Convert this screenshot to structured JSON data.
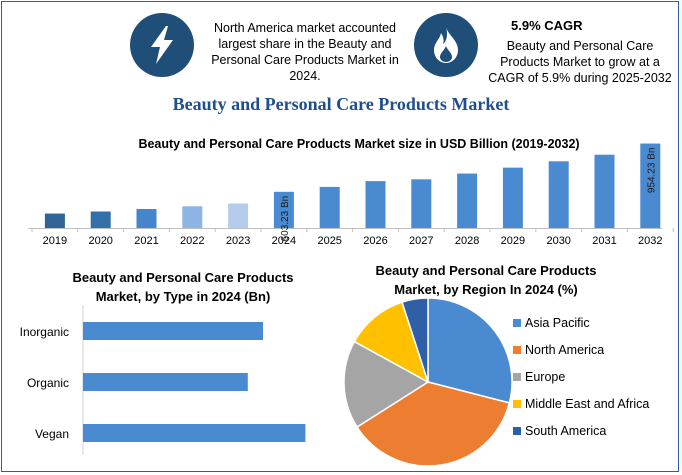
{
  "header": {
    "left_callout": "North America market accounted largest share in the Beauty and Personal Care Products Market in 2024.",
    "right_callout_title": "5.9% CAGR",
    "right_callout_text": "Beauty and Personal Care Products Market to grow at a CAGR of 5.9% during 2025-2032",
    "left_icon": "lightning-bolt-icon",
    "right_icon": "flame-icon",
    "icon_color": "#1f4e79"
  },
  "main_title": "Beauty and Personal Care Products Market",
  "chart_data": [
    {
      "type": "bar",
      "title": "Beauty and Personal Care Products Market size in USD Billion (2019-2032)",
      "categories": [
        "2019",
        "2020",
        "2021",
        "2022",
        "2023",
        "2024",
        "2025",
        "2026",
        "2027",
        "2028",
        "2029",
        "2030",
        "2031",
        "2032"
      ],
      "values": [
        445,
        460,
        478,
        498,
        518,
        603.23,
        639,
        681,
        694,
        736,
        779,
        825,
        873,
        954.23
      ],
      "data_labels": {
        "2024": "603.23 Bn",
        "2032": "954.23 Bn"
      },
      "colors": [
        "#2f6495",
        "#3170a8",
        "#4585cb",
        "#8eb4e3",
        "#b4ccec",
        "#4a8ad0",
        "#4a8ad0",
        "#4a8ad0",
        "#4a8ad0",
        "#4a8ad0",
        "#4a8ad0",
        "#4a8ad0",
        "#4a8ad0",
        "#4a8ad0"
      ],
      "ylim": [
        340,
        980
      ],
      "xlabel": "",
      "ylabel": ""
    },
    {
      "type": "bar",
      "orientation": "horizontal",
      "title": "Beauty and Personal Care Products Market, by Type in 2024 (Bn)",
      "title_lines": [
        "Beauty and Personal Care Products",
        "Market, by Type in 2024 (Bn)"
      ],
      "categories": [
        "Inorganic",
        "Organic",
        "Vegan"
      ],
      "values": [
        225,
        206,
        278
      ],
      "xlim": [
        0,
        300
      ],
      "color": "#4a8ad0"
    },
    {
      "type": "pie",
      "title": "Beauty and Personal Care Products Market, by Region In 2024 (%)",
      "title_lines": [
        "Beauty and Personal Care Products",
        "Market, by Region In 2024 (%)"
      ],
      "labels": [
        "Asia Pacific",
        "North America",
        "Europe",
        "Middle East and Africa",
        "South America"
      ],
      "values": [
        29,
        37,
        17,
        12,
        5
      ],
      "colors": [
        "#4a8ad0",
        "#ed7d31",
        "#a5a5a5",
        "#ffc000",
        "#2f5fa7"
      ]
    }
  ]
}
